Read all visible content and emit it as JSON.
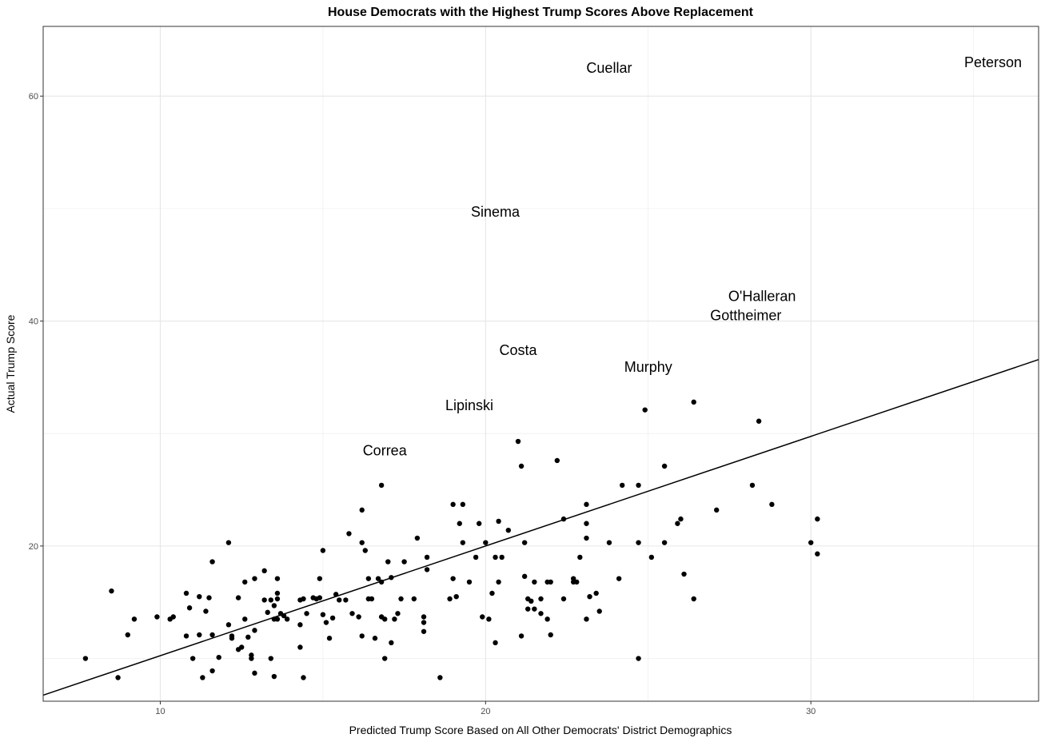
{
  "chart_data": {
    "type": "scatter",
    "title": "House Democrats with the Highest Trump Scores Above Replacement",
    "xlabel": "Predicted Trump Score Based on All Other Democrats' District Demographics",
    "ylabel": "Actual Trump Score",
    "xlim": [
      6.4,
      37.0
    ],
    "ylim": [
      6.2,
      66.2
    ],
    "x_ticks": [
      10,
      20,
      30
    ],
    "y_ticks": [
      20,
      40,
      60
    ],
    "grid": true,
    "fit_line": {
      "intercept": 0.5,
      "slope": 0.975
    },
    "labels": [
      {
        "text": "Peterson",
        "x": 35.6,
        "y": 63.0
      },
      {
        "text": "Cuellar",
        "x": 23.8,
        "y": 62.5
      },
      {
        "text": "Sinema",
        "x": 20.3,
        "y": 49.7
      },
      {
        "text": "O'Halleran",
        "x": 28.5,
        "y": 42.2
      },
      {
        "text": "Gottheimer",
        "x": 28.0,
        "y": 40.5
      },
      {
        "text": "Costa",
        "x": 21.0,
        "y": 37.4
      },
      {
        "text": "Murphy",
        "x": 25.0,
        "y": 35.9
      },
      {
        "text": "Lipinski",
        "x": 19.5,
        "y": 32.5
      },
      {
        "text": "Correa",
        "x": 16.9,
        "y": 28.5
      }
    ],
    "points": [
      [
        7.7,
        10.0
      ],
      [
        8.5,
        16.0
      ],
      [
        8.7,
        8.3
      ],
      [
        9.0,
        12.1
      ],
      [
        9.2,
        13.5
      ],
      [
        9.9,
        13.7
      ],
      [
        10.3,
        13.5
      ],
      [
        10.4,
        13.7
      ],
      [
        10.8,
        12.0
      ],
      [
        10.8,
        15.8
      ],
      [
        10.9,
        14.5
      ],
      [
        11.0,
        10.0
      ],
      [
        11.2,
        12.1
      ],
      [
        11.2,
        15.5
      ],
      [
        11.3,
        8.3
      ],
      [
        11.4,
        14.2
      ],
      [
        11.5,
        15.4
      ],
      [
        11.6,
        12.1
      ],
      [
        11.6,
        18.6
      ],
      [
        11.6,
        8.9
      ],
      [
        11.8,
        10.1
      ],
      [
        12.1,
        13.0
      ],
      [
        12.1,
        20.3
      ],
      [
        12.2,
        12.0
      ],
      [
        12.2,
        11.8
      ],
      [
        12.4,
        10.8
      ],
      [
        12.4,
        15.4
      ],
      [
        12.5,
        11.0
      ],
      [
        12.6,
        13.5
      ],
      [
        12.6,
        16.8
      ],
      [
        12.7,
        11.9
      ],
      [
        12.8,
        10.3
      ],
      [
        12.8,
        10.0
      ],
      [
        12.9,
        12.5
      ],
      [
        12.9,
        17.1
      ],
      [
        12.9,
        8.7
      ],
      [
        13.2,
        17.8
      ],
      [
        13.2,
        15.2
      ],
      [
        13.3,
        14.1
      ],
      [
        13.4,
        15.2
      ],
      [
        13.4,
        10.0
      ],
      [
        13.5,
        8.4
      ],
      [
        13.5,
        13.5
      ],
      [
        13.5,
        14.7
      ],
      [
        13.6,
        15.3
      ],
      [
        13.6,
        17.1
      ],
      [
        13.6,
        15.8
      ],
      [
        13.6,
        13.5
      ],
      [
        13.7,
        14.0
      ],
      [
        13.8,
        13.8
      ],
      [
        13.9,
        13.5
      ],
      [
        14.3,
        15.2
      ],
      [
        14.3,
        13.0
      ],
      [
        14.3,
        11.0
      ],
      [
        14.4,
        15.3
      ],
      [
        14.4,
        8.3
      ],
      [
        14.5,
        14.0
      ],
      [
        14.7,
        15.4
      ],
      [
        14.8,
        15.3
      ],
      [
        14.9,
        17.1
      ],
      [
        14.9,
        15.4
      ],
      [
        15.0,
        13.9
      ],
      [
        15.0,
        19.6
      ],
      [
        15.1,
        13.2
      ],
      [
        15.2,
        11.8
      ],
      [
        15.3,
        13.6
      ],
      [
        15.4,
        15.7
      ],
      [
        15.5,
        15.2
      ],
      [
        15.7,
        15.2
      ],
      [
        15.8,
        21.1
      ],
      [
        15.9,
        14.0
      ],
      [
        16.1,
        13.7
      ],
      [
        16.2,
        23.2
      ],
      [
        16.2,
        20.3
      ],
      [
        16.2,
        12.0
      ],
      [
        16.3,
        19.6
      ],
      [
        16.4,
        17.1
      ],
      [
        16.4,
        15.3
      ],
      [
        16.5,
        15.3
      ],
      [
        16.6,
        11.8
      ],
      [
        16.7,
        17.1
      ],
      [
        16.8,
        25.4
      ],
      [
        16.8,
        16.8
      ],
      [
        16.8,
        13.7
      ],
      [
        16.9,
        13.5
      ],
      [
        16.9,
        10.0
      ],
      [
        17.0,
        18.6
      ],
      [
        17.1,
        17.2
      ],
      [
        17.1,
        11.4
      ],
      [
        17.2,
        13.5
      ],
      [
        17.3,
        14.0
      ],
      [
        17.4,
        15.3
      ],
      [
        17.5,
        18.6
      ],
      [
        17.8,
        15.3
      ],
      [
        17.9,
        20.7
      ],
      [
        18.1,
        13.7
      ],
      [
        18.1,
        13.2
      ],
      [
        18.1,
        12.4
      ],
      [
        18.2,
        19.0
      ],
      [
        18.2,
        17.9
      ],
      [
        18.6,
        8.3
      ],
      [
        18.9,
        15.3
      ],
      [
        19.0,
        23.7
      ],
      [
        19.0,
        17.1
      ],
      [
        19.1,
        15.5
      ],
      [
        19.2,
        22.0
      ],
      [
        19.3,
        20.3
      ],
      [
        19.3,
        23.7
      ],
      [
        19.5,
        16.8
      ],
      [
        19.7,
        19.0
      ],
      [
        19.8,
        22.0
      ],
      [
        19.9,
        13.7
      ],
      [
        20.0,
        20.3
      ],
      [
        20.1,
        13.5
      ],
      [
        20.2,
        15.8
      ],
      [
        20.3,
        19.0
      ],
      [
        20.3,
        11.4
      ],
      [
        20.4,
        22.2
      ],
      [
        20.4,
        16.8
      ],
      [
        20.5,
        19.0
      ],
      [
        20.7,
        21.4
      ],
      [
        21.0,
        29.3
      ],
      [
        21.1,
        27.1
      ],
      [
        21.2,
        17.3
      ],
      [
        21.2,
        20.3
      ],
      [
        21.3,
        15.3
      ],
      [
        21.3,
        14.4
      ],
      [
        21.4,
        15.1
      ],
      [
        21.5,
        16.8
      ],
      [
        21.5,
        14.4
      ],
      [
        21.7,
        15.3
      ],
      [
        21.7,
        14.0
      ],
      [
        21.9,
        16.8
      ],
      [
        21.9,
        13.5
      ],
      [
        22.0,
        16.8
      ],
      [
        22.0,
        12.1
      ],
      [
        22.2,
        27.6
      ],
      [
        22.4,
        22.4
      ],
      [
        22.4,
        15.3
      ],
      [
        22.7,
        16.8
      ],
      [
        22.7,
        17.1
      ],
      [
        22.8,
        16.8
      ],
      [
        22.9,
        19.0
      ],
      [
        23.1,
        13.5
      ],
      [
        23.1,
        20.7
      ],
      [
        23.1,
        22.0
      ],
      [
        23.1,
        23.7
      ],
      [
        23.2,
        15.5
      ],
      [
        23.4,
        15.8
      ],
      [
        23.5,
        14.2
      ],
      [
        23.8,
        20.3
      ],
      [
        24.1,
        17.1
      ],
      [
        24.2,
        25.4
      ],
      [
        24.7,
        20.3
      ],
      [
        24.7,
        25.4
      ],
      [
        24.7,
        10.0
      ],
      [
        24.9,
        32.1
      ],
      [
        25.1,
        19.0
      ],
      [
        25.5,
        20.3
      ],
      [
        25.5,
        27.1
      ],
      [
        25.9,
        22.0
      ],
      [
        26.0,
        22.4
      ],
      [
        26.1,
        17.5
      ],
      [
        26.4,
        15.3
      ],
      [
        26.4,
        32.8
      ],
      [
        27.1,
        23.2
      ],
      [
        28.2,
        25.4
      ],
      [
        28.4,
        31.1
      ],
      [
        28.8,
        23.7
      ],
      [
        30.0,
        20.3
      ],
      [
        30.2,
        22.4
      ],
      [
        30.2,
        19.3
      ],
      [
        21.1,
        12.0
      ]
    ]
  }
}
